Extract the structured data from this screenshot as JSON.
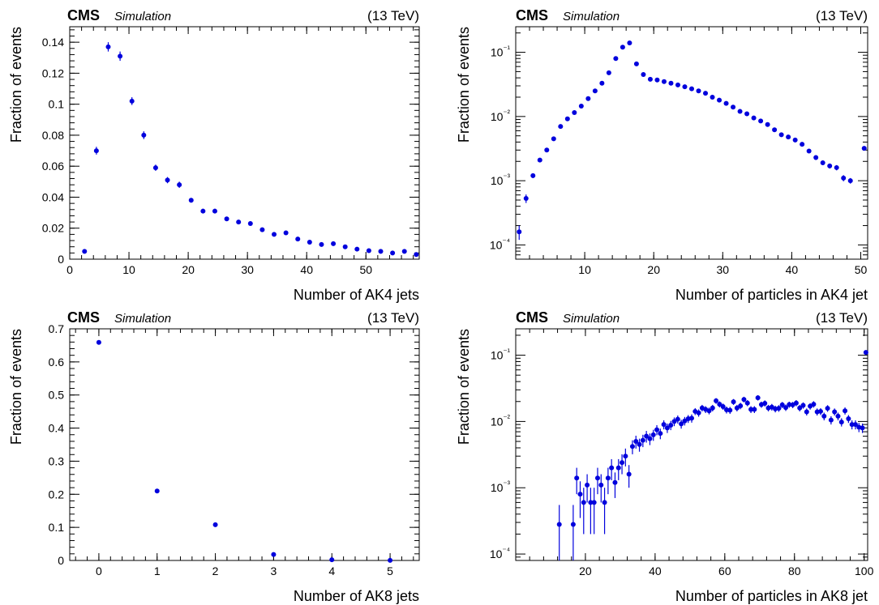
{
  "chart_data": [
    {
      "type": "scatter",
      "experiment": "CMS",
      "tag": "Simulation",
      "energy": "(13 TeV)",
      "xlabel": "Number of AK4 jets",
      "ylabel": "Fraction of events",
      "xlim": [
        0,
        59
      ],
      "ylim": [
        0,
        0.15
      ],
      "yscale": "linear",
      "xticks": [
        0,
        10,
        20,
        30,
        40,
        50
      ],
      "xtick_labels": [
        "0",
        "10",
        "20",
        "30",
        "40",
        "50"
      ],
      "yticks": [
        0,
        0.02,
        0.04,
        0.06,
        0.08,
        0.1,
        0.12,
        0.14
      ],
      "ytick_labels": [
        "0",
        "0.02",
        "0.04",
        "0.06",
        "0.08",
        "0.1",
        "0.12",
        "0.14"
      ],
      "grid": false,
      "color": "#0000dd",
      "series": [
        {
          "x": [
            2.5,
            4.5,
            6.5,
            8.5,
            10.5,
            12.5,
            14.5,
            16.5,
            18.5,
            20.5,
            22.5,
            24.5,
            26.5,
            28.5,
            30.5,
            32.5,
            34.5,
            36.5,
            38.5,
            40.5,
            42.5,
            44.5,
            46.5,
            48.5,
            50.5,
            52.5,
            54.5,
            56.5,
            58.5
          ],
          "y": [
            0.005,
            0.07,
            0.137,
            0.131,
            0.102,
            0.08,
            0.059,
            0.051,
            0.048,
            0.038,
            0.031,
            0.031,
            0.026,
            0.024,
            0.023,
            0.019,
            0.016,
            0.017,
            0.013,
            0.011,
            0.0095,
            0.01,
            0.008,
            0.0065,
            0.0055,
            0.005,
            0.004,
            0.005,
            0.003
          ],
          "err": [
            0.001,
            0.0025,
            0.003,
            0.003,
            0.0025,
            0.0025,
            0.002,
            0.002,
            0.002,
            0.0015,
            0.0015,
            0.0015,
            0.0012,
            0.0012,
            0.0012,
            0.001,
            0.001,
            0.001,
            0.001,
            0.0008,
            0.0008,
            0.0008,
            0.0008,
            0.0007,
            0.0007,
            0.0007,
            0.0006,
            0.0006,
            0.0006
          ]
        }
      ]
    },
    {
      "type": "scatter",
      "experiment": "CMS",
      "tag": "Simulation",
      "energy": "(13 TeV)",
      "xlabel": "Number of particles in AK4 jet",
      "ylabel": "Fraction of events",
      "xlim": [
        0,
        51
      ],
      "ylim": [
        6e-05,
        0.25
      ],
      "yscale": "log",
      "xticks": [
        10,
        20,
        30,
        40,
        50
      ],
      "xtick_labels": [
        "10",
        "20",
        "30",
        "40",
        "50"
      ],
      "yticks": [
        0.0001,
        0.001,
        0.01,
        0.1
      ],
      "ytick_labels": [
        "10⁻⁴",
        "10⁻³",
        "10⁻²",
        "10⁻¹"
      ],
      "grid": false,
      "color": "#0000dd",
      "series": [
        {
          "x": [
            0.5,
            1.5,
            2.5,
            3.5,
            4.5,
            5.5,
            6.5,
            7.5,
            8.5,
            9.5,
            10.5,
            11.5,
            12.5,
            13.5,
            14.5,
            15.5,
            16.5,
            17.5,
            18.5,
            19.5,
            20.5,
            21.5,
            22.5,
            23.5,
            24.5,
            25.5,
            26.5,
            27.5,
            28.5,
            29.5,
            30.5,
            31.5,
            32.5,
            33.5,
            34.5,
            35.5,
            36.5,
            37.5,
            38.5,
            39.5,
            40.5,
            41.5,
            42.5,
            43.5,
            44.5,
            45.5,
            46.5,
            47.5,
            48.5,
            50.5
          ],
          "y": [
            0.00016,
            0.00053,
            0.0012,
            0.0021,
            0.003,
            0.0045,
            0.007,
            0.0092,
            0.0115,
            0.0145,
            0.019,
            0.025,
            0.033,
            0.048,
            0.08,
            0.12,
            0.14,
            0.066,
            0.045,
            0.038,
            0.037,
            0.035,
            0.033,
            0.031,
            0.029,
            0.027,
            0.025,
            0.023,
            0.02,
            0.018,
            0.016,
            0.014,
            0.012,
            0.011,
            0.0095,
            0.0085,
            0.0075,
            0.0062,
            0.0052,
            0.0048,
            0.0043,
            0.0037,
            0.0029,
            0.0023,
            0.0019,
            0.0017,
            0.0016,
            0.0011,
            0.001,
            0.0032
          ],
          "err": [
            4e-05,
            8e-05,
            0.0001,
            0.00012,
            0.00015,
            0.0002,
            0.0003,
            0.0004,
            0.0004,
            0.0005,
            0.0006,
            0.0008,
            0.001,
            0.0015,
            0.002,
            0.003,
            0.003,
            0.002,
            0.0015,
            0.0012,
            0.0012,
            0.0011,
            0.001,
            0.001,
            0.0009,
            0.0009,
            0.0008,
            0.0008,
            0.0007,
            0.0007,
            0.0006,
            0.0006,
            0.0005,
            0.0005,
            0.0004,
            0.0004,
            0.0004,
            0.0003,
            0.0003,
            0.0003,
            0.0003,
            0.0002,
            0.0002,
            0.0002,
            0.00015,
            0.00015,
            0.00015,
            0.00012,
            0.0001,
            0.0002
          ]
        }
      ]
    },
    {
      "type": "scatter",
      "experiment": "CMS",
      "tag": "Simulation",
      "energy": "(13 TeV)",
      "xlabel": "Number of AK8 jets",
      "ylabel": "Fraction of events",
      "xlim": [
        -0.5,
        5.5
      ],
      "ylim": [
        0,
        0.7
      ],
      "yscale": "linear",
      "xticks": [
        0,
        1,
        2,
        3,
        4,
        5
      ],
      "xtick_labels": [
        "0",
        "1",
        "2",
        "3",
        "4",
        "5"
      ],
      "yticks": [
        0,
        0.1,
        0.2,
        0.3,
        0.4,
        0.5,
        0.6,
        0.7
      ],
      "ytick_labels": [
        "0",
        "0.1",
        "0.2",
        "0.3",
        "0.4",
        "0.5",
        "0.6",
        "0.7"
      ],
      "grid": false,
      "color": "#0000dd",
      "series": [
        {
          "x": [
            0,
            1,
            2,
            3,
            4,
            5
          ],
          "y": [
            0.659,
            0.21,
            0.108,
            0.018,
            0.002,
            0.0003
          ],
          "err": [
            0.004,
            0.003,
            0.002,
            0.001,
            0.0005,
            0.0002
          ]
        }
      ]
    },
    {
      "type": "scatter",
      "experiment": "CMS",
      "tag": "Simulation",
      "energy": "(13 TeV)",
      "xlabel": "Number of particles in AK8 jet",
      "ylabel": "Fraction of events",
      "xlim": [
        0,
        101
      ],
      "ylim": [
        8e-05,
        0.25
      ],
      "yscale": "log",
      "xticks": [
        20,
        40,
        60,
        80,
        100
      ],
      "xtick_labels": [
        "20",
        "40",
        "60",
        "80",
        "100"
      ],
      "yticks": [
        0.0001,
        0.001,
        0.01,
        0.1
      ],
      "ytick_labels": [
        "10⁻⁴",
        "10⁻³",
        "10⁻²",
        "10⁻¹"
      ],
      "grid": false,
      "color": "#0000dd",
      "series": [
        {
          "x": [
            12.5,
            16.5,
            17.5,
            18.5,
            19.5,
            20.5,
            21.5,
            22.5,
            23.5,
            24.5,
            25.5,
            26.5,
            27.5,
            28.5,
            29.5,
            30.5,
            31.5,
            32.5,
            33.5,
            34.5,
            35.5,
            36.5,
            37.5,
            38.5,
            39.5,
            40.5,
            41.5,
            42.5,
            43.5,
            44.5,
            45.5,
            46.5,
            47.5,
            48.5,
            49.5,
            50.5,
            51.5,
            52.5,
            53.5,
            54.5,
            55.5,
            56.5,
            57.5,
            58.5,
            59.5,
            60.5,
            61.5,
            62.5,
            63.5,
            64.5,
            65.5,
            66.5,
            67.5,
            68.5,
            69.5,
            70.5,
            71.5,
            72.5,
            73.5,
            74.5,
            75.5,
            76.5,
            77.5,
            78.5,
            79.5,
            80.5,
            81.5,
            82.5,
            83.5,
            84.5,
            85.5,
            86.5,
            87.5,
            88.5,
            89.5,
            90.5,
            91.5,
            92.5,
            93.5,
            94.5,
            95.5,
            96.5,
            97.5,
            98.5,
            99.5,
            100.5
          ],
          "y": [
            0.00028,
            0.00028,
            0.0014,
            0.0008,
            0.0006,
            0.0011,
            0.0006,
            0.0006,
            0.0014,
            0.0011,
            0.0006,
            0.0014,
            0.002,
            0.0012,
            0.002,
            0.0024,
            0.003,
            0.0016,
            0.0042,
            0.005,
            0.0045,
            0.0052,
            0.006,
            0.0055,
            0.0063,
            0.0075,
            0.0066,
            0.009,
            0.008,
            0.0088,
            0.01,
            0.0108,
            0.0092,
            0.0102,
            0.011,
            0.0112,
            0.0142,
            0.0135,
            0.016,
            0.0152,
            0.0145,
            0.016,
            0.0205,
            0.0182,
            0.0168,
            0.015,
            0.0148,
            0.0198,
            0.016,
            0.0172,
            0.0215,
            0.019,
            0.0152,
            0.0152,
            0.0228,
            0.018,
            0.0188,
            0.016,
            0.0165,
            0.0155,
            0.0158,
            0.0178,
            0.0162,
            0.018,
            0.0178,
            0.019,
            0.016,
            0.0175,
            0.014,
            0.017,
            0.0182,
            0.014,
            0.0142,
            0.012,
            0.0158,
            0.0105,
            0.014,
            0.012,
            0.0098,
            0.0145,
            0.011,
            0.009,
            0.009,
            0.0082,
            0.008,
            0.11
          ],
          "err": [
            0.00027,
            0.00027,
            0.0006,
            0.00045,
            0.0004,
            0.0005,
            0.0004,
            0.0004,
            0.0006,
            0.0005,
            0.0004,
            0.0006,
            0.0007,
            0.0005,
            0.0007,
            0.0008,
            0.0009,
            0.0006,
            0.001,
            0.0011,
            0.001,
            0.0011,
            0.0012,
            0.0011,
            0.0012,
            0.0013,
            0.0012,
            0.0014,
            0.0013,
            0.0014,
            0.0015,
            0.0015,
            0.0014,
            0.0015,
            0.0015,
            0.0016,
            0.0017,
            0.0017,
            0.0018,
            0.0018,
            0.0017,
            0.0018,
            0.002,
            0.0019,
            0.0018,
            0.0018,
            0.0018,
            0.002,
            0.0018,
            0.0019,
            0.0021,
            0.002,
            0.0018,
            0.0018,
            0.0021,
            0.0019,
            0.002,
            0.0018,
            0.0019,
            0.0018,
            0.0018,
            0.0019,
            0.0018,
            0.0019,
            0.0019,
            0.002,
            0.0018,
            0.0019,
            0.0017,
            0.0019,
            0.002,
            0.0017,
            0.0017,
            0.0016,
            0.0018,
            0.0015,
            0.0017,
            0.0016,
            0.0014,
            0.0018,
            0.0015,
            0.0014,
            0.0014,
            0.0013,
            0.0013,
            0.005
          ]
        }
      ]
    }
  ]
}
